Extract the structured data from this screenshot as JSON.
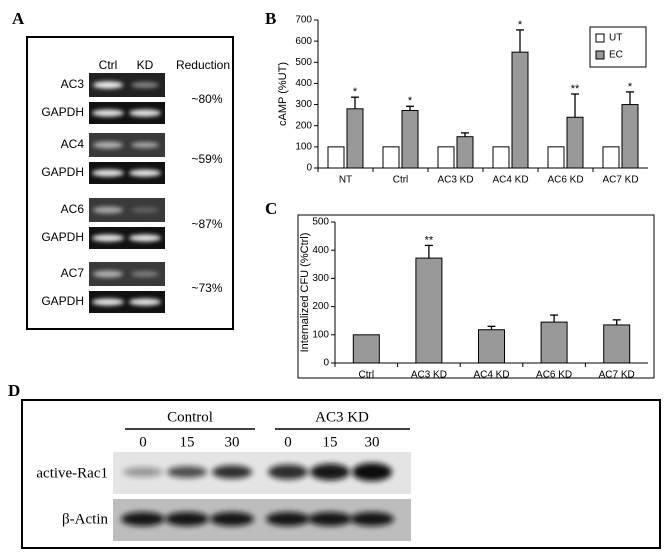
{
  "panels": {
    "a": {
      "label": "A",
      "columns": [
        "Ctrl",
        "KD",
        "Reduction"
      ],
      "rows": [
        {
          "target": "AC3",
          "control": "GAPDH",
          "reduction": "~80%"
        },
        {
          "target": "AC4",
          "control": "GAPDH",
          "reduction": "~59%"
        },
        {
          "target": "AC6",
          "control": "GAPDH",
          "reduction": "~87%"
        },
        {
          "target": "AC7",
          "control": "GAPDH",
          "reduction": "~73%"
        }
      ]
    },
    "d": {
      "label": "D",
      "groups": [
        "Control",
        "AC3 KD"
      ],
      "lanes": [
        "0",
        "15",
        "30",
        "0",
        "15",
        "30"
      ],
      "rows": [
        "active-Rac1",
        "β-Actin"
      ]
    }
  },
  "chart_data": [
    {
      "type": "bar",
      "panel_label": "B",
      "y_label": "cAMP (%UT)",
      "categories": [
        "NT",
        "Ctrl",
        "AC3 KD",
        "AC4 KD",
        "AC6 KD",
        "AC7 KD"
      ],
      "series": [
        {
          "name": "UT",
          "color": "#ffffff",
          "values": [
            100,
            100,
            100,
            100,
            100,
            100
          ]
        },
        {
          "name": "EC",
          "color": "#999999",
          "values": [
            280,
            272,
            148,
            548,
            240,
            300
          ],
          "errors": [
            55,
            20,
            18,
            105,
            110,
            60
          ]
        }
      ],
      "annotations": [
        "*",
        "*",
        null,
        "*",
        "**",
        "*"
      ],
      "ylim": [
        0,
        700
      ],
      "yticks": [
        0,
        100,
        200,
        300,
        400,
        500,
        600,
        700
      ],
      "legend": "upper right",
      "grid": false
    },
    {
      "type": "bar",
      "panel_label": "C",
      "y_label": "Internalized CFU (%Ctrl)",
      "categories": [
        "Ctrl",
        "AC3 KD",
        "AC4 KD",
        "AC6 KD",
        "AC7 KD"
      ],
      "values": [
        100,
        372,
        118,
        145,
        135
      ],
      "errors": [
        null,
        45,
        12,
        25,
        18
      ],
      "color": "#999999",
      "annotations": [
        null,
        "**",
        null,
        null,
        null
      ],
      "ylim": [
        0,
        500
      ],
      "yticks": [
        0,
        100,
        200,
        300,
        400,
        500
      ],
      "grid": false
    }
  ]
}
